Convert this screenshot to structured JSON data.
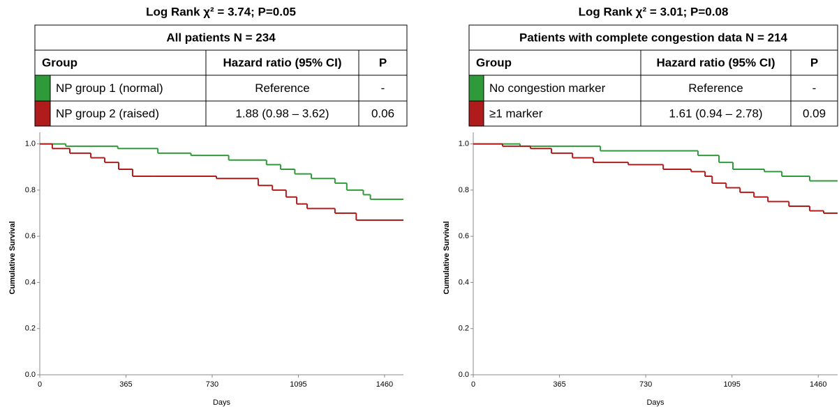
{
  "chart_data": [
    {
      "type": "step",
      "title": "Log Rank χ² = 3.74; P=0.05",
      "table": {
        "caption": "All patients N = 234",
        "header": [
          "Group",
          "Hazard ratio (95% CI)",
          "P"
        ],
        "rows": [
          [
            "Reference",
            "-"
          ],
          [
            "1.88 (0.98 – 3.62)",
            "0.06"
          ]
        ]
      },
      "xlabel": "Days",
      "ylabel": "Cumulative Survival",
      "xlim": [
        0,
        1540
      ],
      "ylim": [
        0,
        1.05
      ],
      "xticks": [
        0,
        365,
        730,
        1095,
        1460
      ],
      "yticks": [
        {
          "value": 0,
          "label": "0.0"
        },
        0.2,
        0.4,
        0.6,
        0.8,
        {
          "value": 1,
          "label": "1.0"
        }
      ],
      "series": [
        {
          "name": "NP group 1 (normal)",
          "color": "#2e9a3a",
          "x": [
            0,
            110,
            330,
            500,
            640,
            800,
            960,
            1020,
            1080,
            1150,
            1250,
            1300,
            1370,
            1400
          ],
          "values": [
            1.0,
            0.99,
            0.98,
            0.96,
            0.95,
            0.93,
            0.91,
            0.89,
            0.87,
            0.85,
            0.83,
            0.8,
            0.78,
            0.76
          ]
        },
        {
          "name": "NP group 2 (raised)",
          "color": "#b01c1c",
          "x": [
            0,
            53,
            127,
            216,
            275,
            334,
            393,
            482,
            748,
            925,
            985,
            1043,
            1088,
            1132,
            1250,
            1340
          ],
          "values": [
            1.0,
            0.98,
            0.96,
            0.94,
            0.92,
            0.89,
            0.86,
            0.86,
            0.85,
            0.82,
            0.8,
            0.77,
            0.74,
            0.72,
            0.7,
            0.67
          ]
        }
      ]
    },
    {
      "type": "step",
      "title": "Log Rank χ² = 3.01; P=0.08",
      "table": {
        "caption": "Patients with complete congestion data N = 214",
        "header": [
          "Group",
          "Hazard ratio (95% CI)",
          "P"
        ],
        "rows": [
          [
            "Reference",
            "-"
          ],
          [
            "1.61 (0.94 – 2.78)",
            "0.09"
          ]
        ]
      },
      "xlabel": "Days",
      "ylabel": "Cumulative Survival",
      "xlim": [
        0,
        1542
      ],
      "ylim": [
        0,
        1.05
      ],
      "xticks": [
        0,
        365,
        730,
        1095,
        1460
      ],
      "yticks": [
        {
          "value": 0,
          "label": "0.0"
        },
        0.2,
        0.4,
        0.6,
        0.8,
        {
          "value": 1,
          "label": "1.0"
        }
      ],
      "series": [
        {
          "name": "No congestion marker",
          "color": "#2e9a3a",
          "x": [
            0,
            198,
            538,
            951,
            1040,
            1099,
            1232,
            1306,
            1424
          ],
          "values": [
            1.0,
            0.99,
            0.97,
            0.95,
            0.92,
            0.89,
            0.88,
            0.86,
            0.84
          ]
        },
        {
          "name": "≥1 marker",
          "color": "#b01c1c",
          "x": [
            0,
            124,
            242,
            331,
            420,
            508,
            656,
            804,
            922,
            981,
            1011,
            1070,
            1129,
            1188,
            1247,
            1336,
            1424,
            1483
          ],
          "values": [
            1.0,
            0.99,
            0.98,
            0.96,
            0.94,
            0.92,
            0.91,
            0.89,
            0.88,
            0.86,
            0.83,
            0.81,
            0.79,
            0.77,
            0.75,
            0.73,
            0.71,
            0.7
          ]
        }
      ]
    }
  ]
}
